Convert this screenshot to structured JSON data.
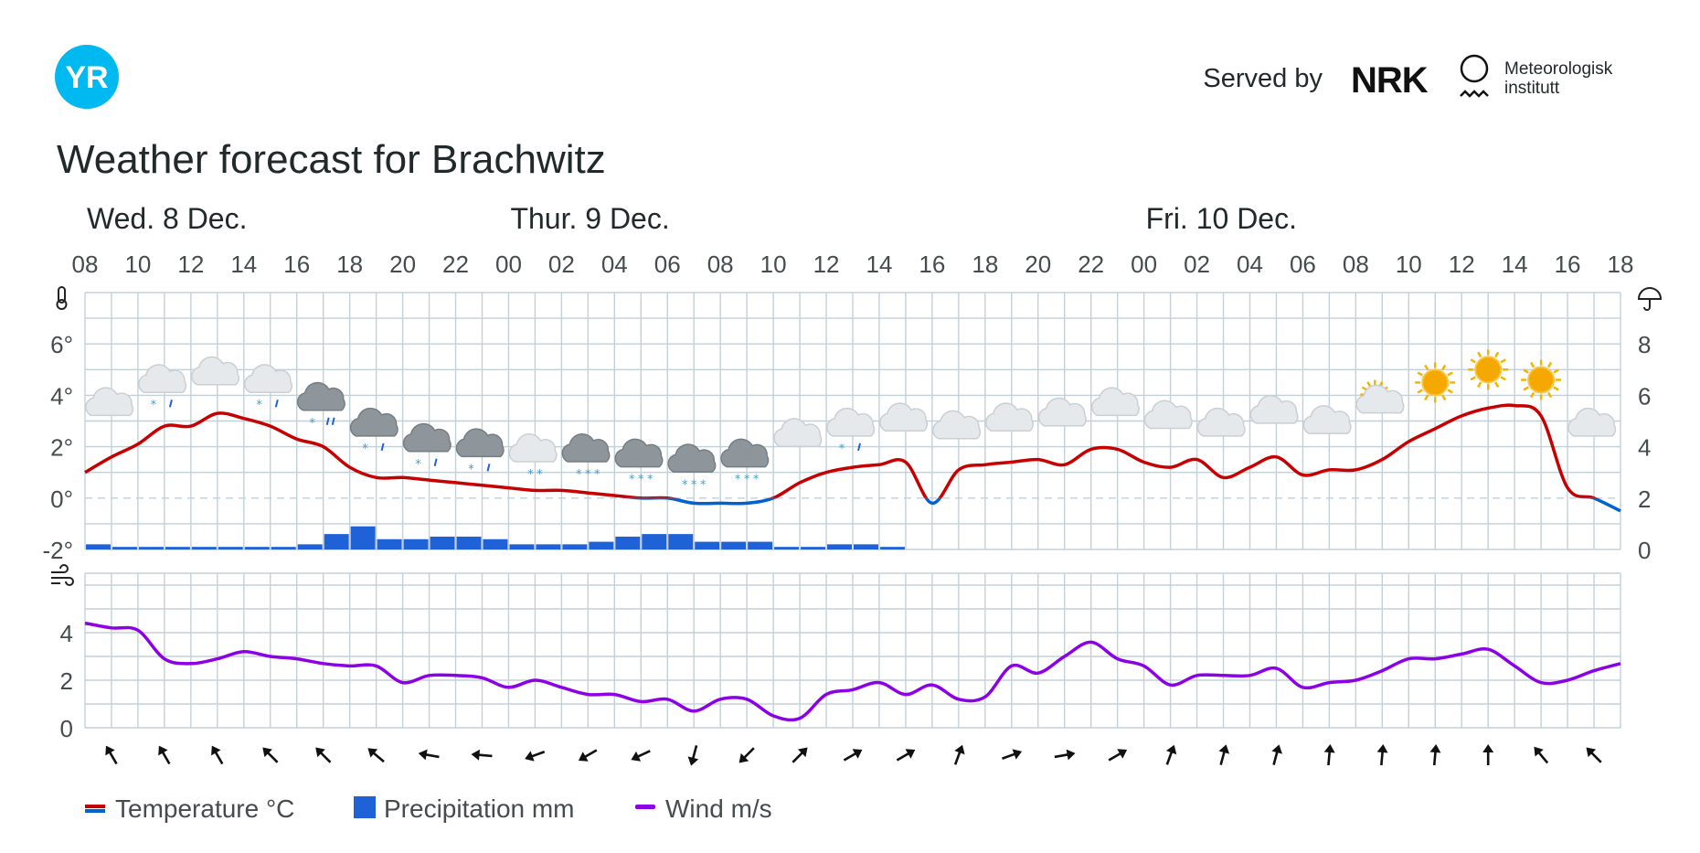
{
  "header": {
    "logo_text": "YR",
    "served_by": "Served by",
    "nrk_logo_text": "NRK",
    "met_line1": "Meteorologisk",
    "met_line2": "institutt",
    "title": "Weather forecast for Brachwitz"
  },
  "colors": {
    "yr_blue": "#00b9f1",
    "temp_warm": "#c60000",
    "temp_cold": "#0062cc",
    "precip": "#1f61d6",
    "wind": "#8c00e6",
    "grid": "#c3d0d8"
  },
  "chart_data": {
    "type": "line",
    "days": [
      {
        "label": "Wed. 8 Dec.",
        "start_hour": 8
      },
      {
        "label": "Thur. 9 Dec.",
        "start_hour": 24
      },
      {
        "label": "Fri. 10 Dec.",
        "start_hour": 48
      }
    ],
    "hour_ticks": [
      "08",
      "10",
      "12",
      "14",
      "16",
      "18",
      "20",
      "22",
      "00",
      "02",
      "04",
      "06",
      "08",
      "10",
      "12",
      "14",
      "16",
      "18",
      "20",
      "22",
      "00",
      "02",
      "04",
      "06",
      "08",
      "10",
      "12",
      "14",
      "16",
      "18"
    ],
    "temperature_axis": {
      "ticks": [
        "-2°",
        "0°",
        "2°",
        "4°",
        "6°"
      ],
      "range": [
        -2,
        8
      ]
    },
    "precipitation_axis": {
      "ticks": [
        "0",
        "2",
        "4",
        "6",
        "8"
      ],
      "range": [
        0,
        10
      ]
    },
    "wind_axis": {
      "ticks": [
        "0",
        "2",
        "4"
      ],
      "range": [
        0,
        6.5
      ]
    },
    "temperature": [
      {
        "h": 8,
        "v": 1.0
      },
      {
        "h": 9,
        "v": 1.6
      },
      {
        "h": 10,
        "v": 2.1
      },
      {
        "h": 11,
        "v": 2.8
      },
      {
        "h": 12,
        "v": 2.8
      },
      {
        "h": 13,
        "v": 3.3
      },
      {
        "h": 14,
        "v": 3.1
      },
      {
        "h": 15,
        "v": 2.8
      },
      {
        "h": 16,
        "v": 2.3
      },
      {
        "h": 17,
        "v": 2.0
      },
      {
        "h": 18,
        "v": 1.2
      },
      {
        "h": 19,
        "v": 0.8
      },
      {
        "h": 20,
        "v": 0.8
      },
      {
        "h": 21,
        "v": 0.7
      },
      {
        "h": 22,
        "v": 0.6
      },
      {
        "h": 23,
        "v": 0.5
      },
      {
        "h": 24,
        "v": 0.4
      },
      {
        "h": 25,
        "v": 0.3
      },
      {
        "h": 26,
        "v": 0.3
      },
      {
        "h": 27,
        "v": 0.2
      },
      {
        "h": 28,
        "v": 0.1
      },
      {
        "h": 29,
        "v": 0.0
      },
      {
        "h": 30,
        "v": 0.0
      },
      {
        "h": 31,
        "v": -0.2
      },
      {
        "h": 32,
        "v": -0.2
      },
      {
        "h": 33,
        "v": -0.2
      },
      {
        "h": 34,
        "v": 0.0
      },
      {
        "h": 35,
        "v": 0.6
      },
      {
        "h": 36,
        "v": 1.0
      },
      {
        "h": 37,
        "v": 1.2
      },
      {
        "h": 38,
        "v": 1.3
      },
      {
        "h": 39,
        "v": 1.4
      },
      {
        "h": 40,
        "v": -0.2
      },
      {
        "h": 41,
        "v": 1.1
      },
      {
        "h": 42,
        "v": 1.3
      },
      {
        "h": 43,
        "v": 1.4
      },
      {
        "h": 44,
        "v": 1.5
      },
      {
        "h": 45,
        "v": 1.3
      },
      {
        "h": 46,
        "v": 1.9
      },
      {
        "h": 47,
        "v": 1.9
      },
      {
        "h": 48,
        "v": 1.4
      },
      {
        "h": 49,
        "v": 1.2
      },
      {
        "h": 50,
        "v": 1.5
      },
      {
        "h": 51,
        "v": 0.8
      },
      {
        "h": 52,
        "v": 1.2
      },
      {
        "h": 53,
        "v": 1.6
      },
      {
        "h": 54,
        "v": 0.9
      },
      {
        "h": 55,
        "v": 1.1
      },
      {
        "h": 56,
        "v": 1.1
      },
      {
        "h": 57,
        "v": 1.5
      },
      {
        "h": 58,
        "v": 2.2
      },
      {
        "h": 59,
        "v": 2.7
      },
      {
        "h": 60,
        "v": 3.2
      },
      {
        "h": 61,
        "v": 3.5
      },
      {
        "h": 62,
        "v": 3.6
      },
      {
        "h": 63,
        "v": 3.2
      },
      {
        "h": 64,
        "v": 0.4
      },
      {
        "h": 65,
        "v": 0.0
      },
      {
        "h": 66,
        "v": -0.5
      }
    ],
    "precipitation": [
      {
        "h": 8,
        "v": 0.2
      },
      {
        "h": 9,
        "v": 0.1
      },
      {
        "h": 10,
        "v": 0.1
      },
      {
        "h": 11,
        "v": 0.1
      },
      {
        "h": 12,
        "v": 0.1
      },
      {
        "h": 13,
        "v": 0.1
      },
      {
        "h": 14,
        "v": 0.1
      },
      {
        "h": 15,
        "v": 0.1
      },
      {
        "h": 16,
        "v": 0.2
      },
      {
        "h": 17,
        "v": 0.6
      },
      {
        "h": 18,
        "v": 0.9
      },
      {
        "h": 19,
        "v": 0.4
      },
      {
        "h": 20,
        "v": 0.4
      },
      {
        "h": 21,
        "v": 0.5
      },
      {
        "h": 22,
        "v": 0.5
      },
      {
        "h": 23,
        "v": 0.4
      },
      {
        "h": 24,
        "v": 0.2
      },
      {
        "h": 25,
        "v": 0.2
      },
      {
        "h": 26,
        "v": 0.2
      },
      {
        "h": 27,
        "v": 0.3
      },
      {
        "h": 28,
        "v": 0.5
      },
      {
        "h": 29,
        "v": 0.6
      },
      {
        "h": 30,
        "v": 0.6
      },
      {
        "h": 31,
        "v": 0.3
      },
      {
        "h": 32,
        "v": 0.3
      },
      {
        "h": 33,
        "v": 0.3
      },
      {
        "h": 34,
        "v": 0.1
      },
      {
        "h": 35,
        "v": 0.1
      },
      {
        "h": 36,
        "v": 0.2
      },
      {
        "h": 37,
        "v": 0.2
      },
      {
        "h": 38,
        "v": 0.1
      }
    ],
    "wind": [
      {
        "h": 8,
        "v": 4.4
      },
      {
        "h": 9,
        "v": 4.2
      },
      {
        "h": 10,
        "v": 4.1
      },
      {
        "h": 11,
        "v": 2.9
      },
      {
        "h": 12,
        "v": 2.7
      },
      {
        "h": 13,
        "v": 2.9
      },
      {
        "h": 14,
        "v": 3.2
      },
      {
        "h": 15,
        "v": 3.0
      },
      {
        "h": 16,
        "v": 2.9
      },
      {
        "h": 17,
        "v": 2.7
      },
      {
        "h": 18,
        "v": 2.6
      },
      {
        "h": 19,
        "v": 2.6
      },
      {
        "h": 20,
        "v": 1.9
      },
      {
        "h": 21,
        "v": 2.2
      },
      {
        "h": 22,
        "v": 2.2
      },
      {
        "h": 23,
        "v": 2.1
      },
      {
        "h": 24,
        "v": 1.7
      },
      {
        "h": 25,
        "v": 2.0
      },
      {
        "h": 26,
        "v": 1.7
      },
      {
        "h": 27,
        "v": 1.4
      },
      {
        "h": 28,
        "v": 1.4
      },
      {
        "h": 29,
        "v": 1.1
      },
      {
        "h": 30,
        "v": 1.2
      },
      {
        "h": 31,
        "v": 0.7
      },
      {
        "h": 32,
        "v": 1.2
      },
      {
        "h": 33,
        "v": 1.2
      },
      {
        "h": 34,
        "v": 0.5
      },
      {
        "h": 35,
        "v": 0.4
      },
      {
        "h": 36,
        "v": 1.4
      },
      {
        "h": 37,
        "v": 1.6
      },
      {
        "h": 38,
        "v": 1.9
      },
      {
        "h": 39,
        "v": 1.4
      },
      {
        "h": 40,
        "v": 1.8
      },
      {
        "h": 41,
        "v": 1.2
      },
      {
        "h": 42,
        "v": 1.3
      },
      {
        "h": 43,
        "v": 2.6
      },
      {
        "h": 44,
        "v": 2.3
      },
      {
        "h": 45,
        "v": 3.0
      },
      {
        "h": 46,
        "v": 3.6
      },
      {
        "h": 47,
        "v": 2.9
      },
      {
        "h": 48,
        "v": 2.6
      },
      {
        "h": 49,
        "v": 1.8
      },
      {
        "h": 50,
        "v": 2.2
      },
      {
        "h": 51,
        "v": 2.2
      },
      {
        "h": 52,
        "v": 2.2
      },
      {
        "h": 53,
        "v": 2.5
      },
      {
        "h": 54,
        "v": 1.7
      },
      {
        "h": 55,
        "v": 1.9
      },
      {
        "h": 56,
        "v": 2.0
      },
      {
        "h": 57,
        "v": 2.4
      },
      {
        "h": 58,
        "v": 2.9
      },
      {
        "h": 59,
        "v": 2.9
      },
      {
        "h": 60,
        "v": 3.1
      },
      {
        "h": 61,
        "v": 3.3
      },
      {
        "h": 62,
        "v": 2.6
      },
      {
        "h": 63,
        "v": 1.9
      },
      {
        "h": 64,
        "v": 2.0
      },
      {
        "h": 65,
        "v": 2.4
      },
      {
        "h": 66,
        "v": 2.7
      }
    ],
    "weather_symbols": [
      {
        "h": 9,
        "temp": 3.5,
        "icon": "cloud-icon"
      },
      {
        "h": 11,
        "temp": 4.4,
        "icon": "snow-sleet-icon"
      },
      {
        "h": 13,
        "temp": 4.7,
        "icon": "cloud-icon"
      },
      {
        "h": 15,
        "temp": 4.4,
        "icon": "snow-sleet-icon"
      },
      {
        "h": 17,
        "temp": 3.7,
        "icon": "heavy-sleet-icon"
      },
      {
        "h": 19,
        "temp": 2.7,
        "icon": "sleet-icon"
      },
      {
        "h": 21,
        "temp": 2.1,
        "icon": "sleet-icon"
      },
      {
        "h": 23,
        "temp": 1.9,
        "icon": "sleet-icon"
      },
      {
        "h": 25,
        "temp": 1.7,
        "icon": "snow-icon"
      },
      {
        "h": 27,
        "temp": 1.7,
        "icon": "snow-dark-icon"
      },
      {
        "h": 29,
        "temp": 1.5,
        "icon": "snow-dark-icon"
      },
      {
        "h": 31,
        "temp": 1.3,
        "icon": "snow-dark-icon"
      },
      {
        "h": 33,
        "temp": 1.5,
        "icon": "snow-dark-icon"
      },
      {
        "h": 35,
        "temp": 2.3,
        "icon": "cloud-icon"
      },
      {
        "h": 37,
        "temp": 2.7,
        "icon": "snow-sleet-icon"
      },
      {
        "h": 39,
        "temp": 2.9,
        "icon": "cloud-icon"
      },
      {
        "h": 41,
        "temp": 2.6,
        "icon": "cloud-icon"
      },
      {
        "h": 43,
        "temp": 2.9,
        "icon": "cloud-icon"
      },
      {
        "h": 45,
        "temp": 3.1,
        "icon": "cloud-icon"
      },
      {
        "h": 47,
        "temp": 3.5,
        "icon": "cloud-icon"
      },
      {
        "h": 49,
        "temp": 3.0,
        "icon": "cloud-icon"
      },
      {
        "h": 51,
        "temp": 2.7,
        "icon": "cloud-icon"
      },
      {
        "h": 53,
        "temp": 3.2,
        "icon": "cloud-icon"
      },
      {
        "h": 55,
        "temp": 2.8,
        "icon": "cloud-icon"
      },
      {
        "h": 57,
        "temp": 3.6,
        "icon": "partly-sunny-icon"
      },
      {
        "h": 59,
        "temp": 4.5,
        "icon": "sun-icon"
      },
      {
        "h": 61,
        "temp": 5.0,
        "icon": "sun-icon"
      },
      {
        "h": 63,
        "temp": 4.6,
        "icon": "sun-icon"
      },
      {
        "h": 65,
        "temp": 2.7,
        "icon": "cloud-icon"
      }
    ],
    "wind_direction_deg": [
      -30,
      -30,
      -30,
      -45,
      -45,
      -50,
      -80,
      -85,
      -110,
      -120,
      -115,
      -165,
      -135,
      45,
      60,
      60,
      20,
      70,
      80,
      60,
      20,
      15,
      15,
      5,
      5,
      5,
      0,
      -40,
      -45
    ]
  },
  "legend": {
    "temperature": "Temperature °C",
    "precipitation": "Precipitation mm",
    "wind": "Wind m/s"
  },
  "icons": {
    "thermometer": "thermometer-icon",
    "umbrella": "umbrella-icon",
    "wind": "wind-icon"
  }
}
